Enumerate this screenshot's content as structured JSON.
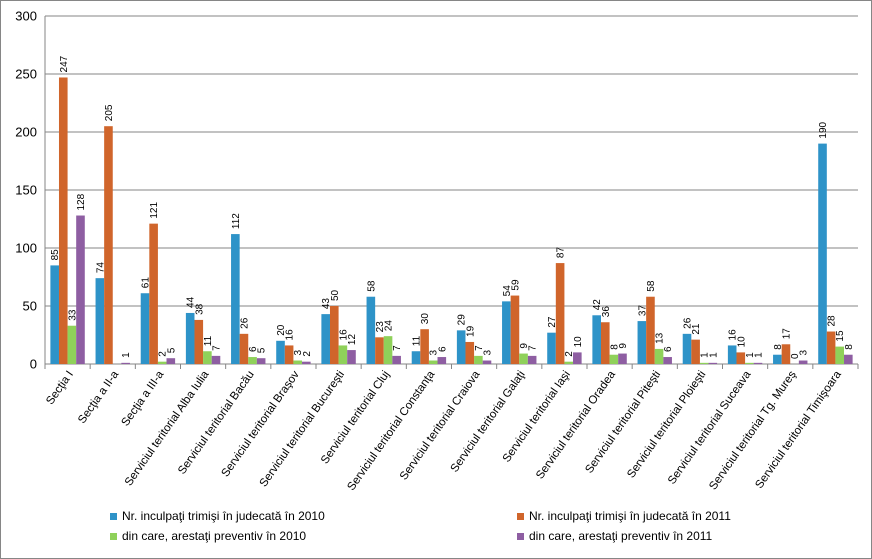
{
  "chart_data": {
    "type": "bar",
    "categories": [
      "Secţia I",
      "Secţia a II-a",
      "Secţia a III-a",
      "Serviciul teritorial Alba Iulia",
      "Serviciul teritorial Bacău",
      "Serviciul teritorial  Braşov",
      "Serviciul teritorial  Bucureşti",
      "Serviciul teritorial Cluj",
      "Serviciul teritorial  Constanţa",
      "Serviciul teritorial Craiova",
      "Serviciul teritorial Galaţi",
      "Serviciul teritorial Iaşi",
      "Serviciul teritorial Oradea",
      "Serviciul teritorial Piteşti",
      "Serviciul teritorial Ploieşti",
      "Serviciul teritorial Suceava",
      "Serviciul teritorial Tg. Mureş",
      "Serviciul teritorial Timişoara"
    ],
    "series": [
      {
        "name": "Nr. inculpaţi trimişi în judecată în 2010",
        "color": "#2e93c8",
        "values": [
          85,
          74,
          61,
          44,
          112,
          20,
          43,
          58,
          11,
          29,
          54,
          27,
          42,
          37,
          26,
          16,
          8,
          190
        ]
      },
      {
        "name": "Nr. inculpaţi trimişi în judecată în 2011",
        "color": "#d0652b",
        "values": [
          247,
          205,
          121,
          38,
          26,
          16,
          50,
          23,
          30,
          19,
          59,
          87,
          36,
          58,
          21,
          10,
          17,
          28
        ]
      },
      {
        "name": "din care, arestaţi preventiv în 2010",
        "color": "#8fd15a",
        "values": [
          33,
          null,
          2,
          11,
          6,
          3,
          16,
          24,
          3,
          7,
          9,
          2,
          8,
          13,
          1,
          1,
          0,
          15
        ]
      },
      {
        "name": "din care, arestaţi preventiv în 2011",
        "color": "#8e5ea2",
        "values": [
          128,
          1,
          5,
          7,
          5,
          2,
          12,
          7,
          6,
          3,
          7,
          10,
          9,
          6,
          1,
          1,
          3,
          8
        ]
      }
    ],
    "ylim": [
      0,
      300
    ],
    "yticks": [
      0,
      50,
      100,
      150,
      200,
      250,
      300
    ],
    "grid": true,
    "legend": "bottom"
  }
}
